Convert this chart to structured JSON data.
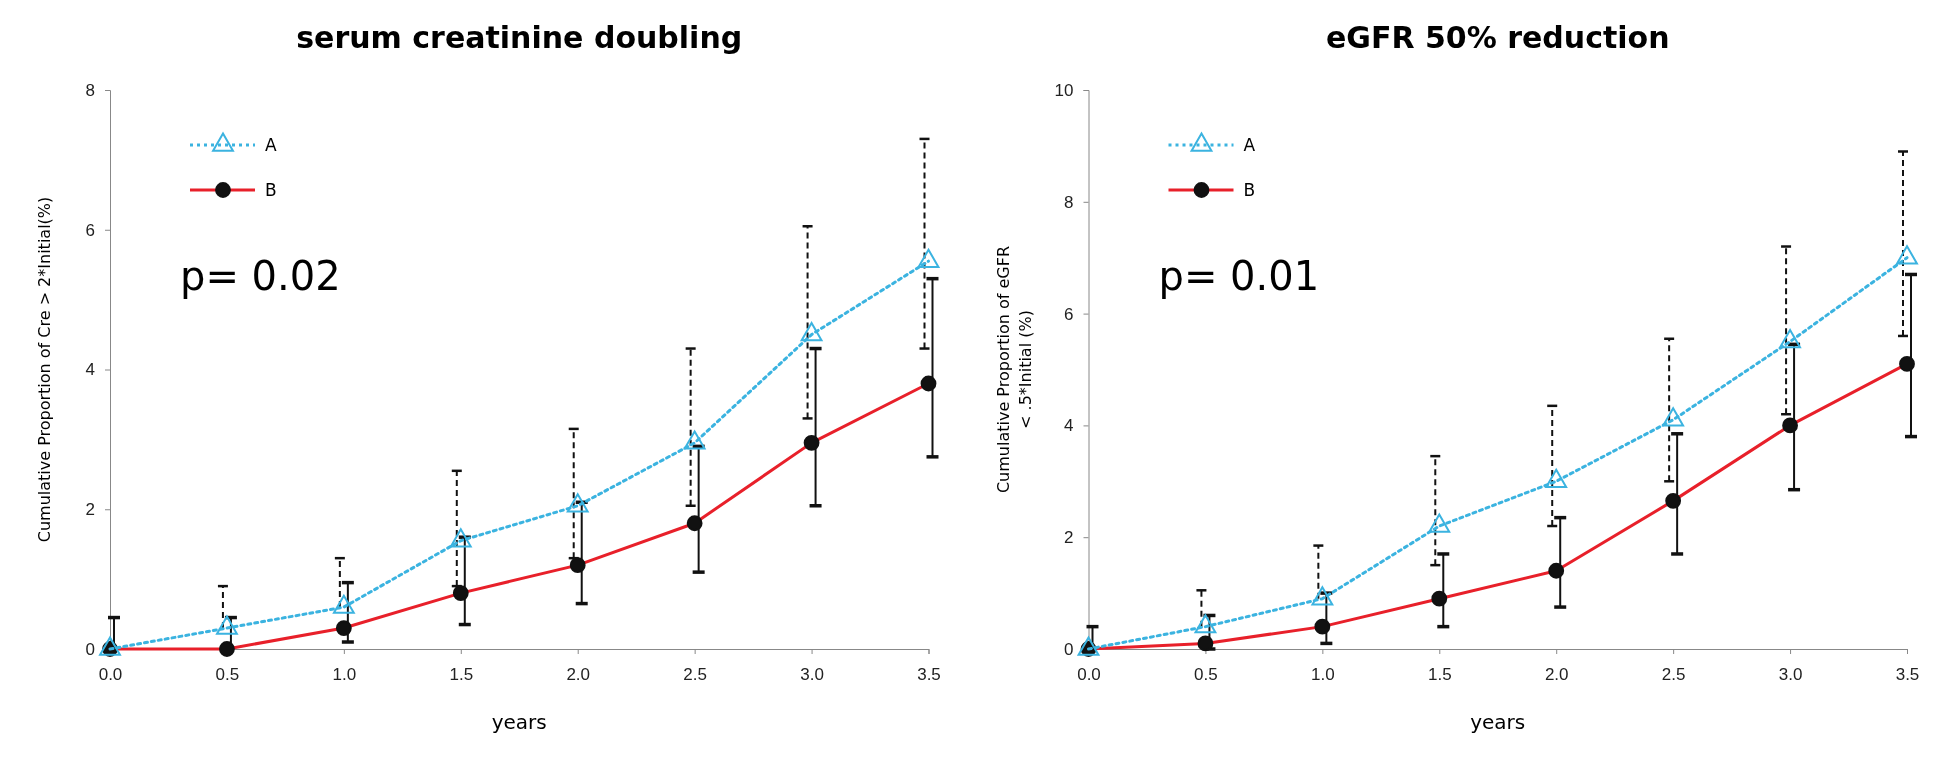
{
  "chart_data": [
    {
      "type": "line",
      "title": "serum creatinine doubling",
      "xlabel": "years",
      "ylabel": "Cumulative Proportion of Cre > 2*Initial(%)",
      "annotations": [
        "p= 0.02"
      ],
      "x": [
        0,
        0.5,
        1,
        1.5,
        2,
        2.5,
        3,
        3.5
      ],
      "xlim": [
        0,
        3.5
      ],
      "xticks": [
        {
          "value": 0,
          "label": "0.0"
        },
        {
          "value": 0.5,
          "label": "0.5"
        },
        {
          "value": 1,
          "label": "1.0"
        },
        {
          "value": 1.5,
          "label": "1.5"
        },
        {
          "value": 2,
          "label": "2.0"
        },
        {
          "value": 2.5,
          "label": "2.5"
        },
        {
          "value": 3,
          "label": "3.0"
        },
        {
          "value": 3.5,
          "label": "3.5"
        }
      ],
      "ylim": [
        0,
        8
      ],
      "yticks": [
        0,
        2,
        4,
        6,
        8
      ],
      "grid": false,
      "legend": "top left",
      "series": [
        {
          "name": "A",
          "color": "#3bb3e0",
          "marker": "triangle",
          "line_style": "dotted",
          "values": [
            0,
            0.3,
            0.6,
            1.55,
            2.05,
            2.95,
            4.5,
            5.55
          ],
          "errors": [
            null,
            [
              0.3,
              0.9
            ],
            [
              0.6,
              1.3
            ],
            [
              0.9,
              2.55
            ],
            [
              1.3,
              3.15
            ],
            [
              2.05,
              4.3
            ],
            [
              3.3,
              6.05
            ],
            [
              4.3,
              7.3
            ]
          ]
        },
        {
          "name": "B",
          "color": "#e8202a",
          "marker": "circle",
          "line_style": "solid",
          "values": [
            0,
            0,
            0.3,
            0.8,
            1.2,
            1.8,
            2.95,
            3.8
          ],
          "errors": [
            [
              0,
              0.45
            ],
            [
              0,
              0.45
            ],
            [
              0.1,
              0.95
            ],
            [
              0.35,
              1.6
            ],
            [
              0.65,
              2.1
            ],
            [
              1.1,
              2.9
            ],
            [
              2.05,
              4.3
            ],
            [
              2.75,
              5.3
            ]
          ]
        }
      ]
    },
    {
      "type": "line",
      "title": "eGFR 50% reduction",
      "xlabel": "years",
      "ylabel": "Cumulative Proportion of eGFR\n< .5*Initial (%)",
      "annotations": [
        "p= 0.01"
      ],
      "x": [
        0,
        0.5,
        1,
        1.5,
        2,
        2.5,
        3,
        3.5
      ],
      "xlim": [
        0,
        3.5
      ],
      "xticks": [
        {
          "value": 0,
          "label": "0.0"
        },
        {
          "value": 0.5,
          "label": "0.5"
        },
        {
          "value": 1,
          "label": "1.0"
        },
        {
          "value": 1.5,
          "label": "1.5"
        },
        {
          "value": 2,
          "label": "2.0"
        },
        {
          "value": 2.5,
          "label": "2.5"
        },
        {
          "value": 3,
          "label": "3.0"
        },
        {
          "value": 3.5,
          "label": "3.5"
        }
      ],
      "ylim": [
        0,
        10
      ],
      "yticks": [
        0,
        2,
        4,
        6,
        8,
        10
      ],
      "grid": false,
      "legend": "top left",
      "series": [
        {
          "name": "A",
          "color": "#3bb3e0",
          "marker": "triangle",
          "line_style": "dotted",
          "values": [
            0,
            0.4,
            0.9,
            2.2,
            3.0,
            4.1,
            5.5,
            7.0
          ],
          "errors": [
            null,
            [
              0.4,
              1.05
            ],
            [
              0.9,
              1.85
            ],
            [
              1.5,
              3.45
            ],
            [
              2.2,
              4.35
            ],
            [
              3.0,
              5.55
            ],
            [
              4.2,
              7.2
            ],
            [
              5.6,
              8.9
            ]
          ]
        },
        {
          "name": "B",
          "color": "#e8202a",
          "marker": "circle",
          "line_style": "solid",
          "values": [
            0,
            0.1,
            0.4,
            0.9,
            1.4,
            2.65,
            4.0,
            5.1
          ],
          "errors": [
            [
              0,
              0.4
            ],
            [
              0,
              0.6
            ],
            [
              0.1,
              1.0
            ],
            [
              0.4,
              1.7
            ],
            [
              0.75,
              2.35
            ],
            [
              1.7,
              3.85
            ],
            [
              2.85,
              5.45
            ],
            [
              3.8,
              6.7
            ]
          ]
        }
      ]
    }
  ]
}
